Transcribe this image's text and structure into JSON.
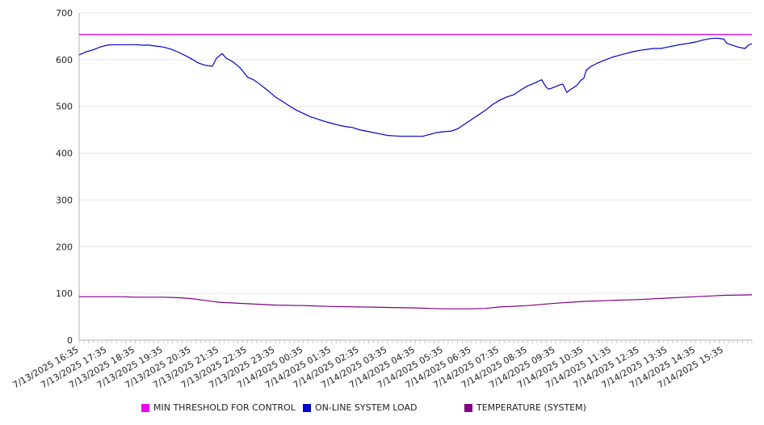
{
  "chart_data": {
    "type": "line",
    "ylim": [
      0,
      700
    ],
    "yticks": [
      0,
      100,
      200,
      300,
      400,
      500,
      600,
      700
    ],
    "xtick_labels": [
      "7/13/2025 16:35",
      "7/13/2025 17:35",
      "7/13/2025 18:35",
      "7/13/2025 19:35",
      "7/13/2025 20:35",
      "7/13/2025 21:35",
      "7/13/2025 22:35",
      "7/13/2025 23:35",
      "7/14/2025 00:35",
      "7/14/2025 01:35",
      "7/14/2025 02:35",
      "7/14/2025 03:35",
      "7/14/2025 04:35",
      "7/14/2025 05:35",
      "7/14/2025 06:35",
      "7/14/2025 07:35",
      "7/14/2025 08:35",
      "7/14/2025 09:35",
      "7/14/2025 10:35",
      "7/14/2025 11:35",
      "7/14/2025 12:35",
      "7/14/2025 13:35",
      "7/14/2025 14:35",
      "7/14/2025 15:35"
    ],
    "x_span_hours": 24,
    "grid": "horizontal",
    "legend_position": "bottom",
    "series": [
      {
        "name": "MIN THRESHOLD FOR CONTROL",
        "color": "#ee00ee",
        "points": [
          [
            0,
            654
          ],
          [
            24,
            654
          ]
        ]
      },
      {
        "name": "ON-LINE SYSTEM LOAD",
        "color": "#0000cc",
        "points": [
          [
            0,
            610
          ],
          [
            0.25,
            617
          ],
          [
            0.5,
            621
          ],
          [
            0.75,
            627
          ],
          [
            1.0,
            631
          ],
          [
            1.25,
            632
          ],
          [
            1.5,
            632
          ],
          [
            1.75,
            632
          ],
          [
            2.0,
            632
          ],
          [
            2.25,
            631
          ],
          [
            2.5,
            631
          ],
          [
            2.75,
            629
          ],
          [
            3.0,
            627
          ],
          [
            3.25,
            623
          ],
          [
            3.5,
            617
          ],
          [
            3.75,
            610
          ],
          [
            4.0,
            602
          ],
          [
            4.25,
            593
          ],
          [
            4.5,
            588
          ],
          [
            4.75,
            586
          ],
          [
            4.9,
            603
          ],
          [
            5.1,
            613
          ],
          [
            5.25,
            603
          ],
          [
            5.5,
            595
          ],
          [
            5.75,
            582
          ],
          [
            6.0,
            563
          ],
          [
            6.25,
            556
          ],
          [
            6.5,
            545
          ],
          [
            6.75,
            533
          ],
          [
            7.0,
            520
          ],
          [
            7.25,
            511
          ],
          [
            7.5,
            501
          ],
          [
            7.75,
            492
          ],
          [
            8.0,
            485
          ],
          [
            8.25,
            478
          ],
          [
            8.5,
            473
          ],
          [
            8.75,
            468
          ],
          [
            9.0,
            464
          ],
          [
            9.25,
            460
          ],
          [
            9.5,
            457
          ],
          [
            9.75,
            455
          ],
          [
            10.0,
            450
          ],
          [
            10.25,
            447
          ],
          [
            10.5,
            444
          ],
          [
            10.75,
            441
          ],
          [
            11.0,
            438
          ],
          [
            11.25,
            437
          ],
          [
            11.5,
            436
          ],
          [
            11.75,
            436
          ],
          [
            12.0,
            436
          ],
          [
            12.25,
            436
          ],
          [
            12.5,
            440
          ],
          [
            12.75,
            444
          ],
          [
            13.0,
            446
          ],
          [
            13.25,
            447
          ],
          [
            13.5,
            452
          ],
          [
            13.75,
            462
          ],
          [
            14.0,
            472
          ],
          [
            14.25,
            482
          ],
          [
            14.5,
            492
          ],
          [
            14.75,
            504
          ],
          [
            15.0,
            513
          ],
          [
            15.25,
            520
          ],
          [
            15.5,
            525
          ],
          [
            15.75,
            535
          ],
          [
            16.0,
            544
          ],
          [
            16.25,
            550
          ],
          [
            16.5,
            557
          ],
          [
            16.65,
            542
          ],
          [
            16.75,
            537
          ],
          [
            16.9,
            540
          ],
          [
            17.1,
            545
          ],
          [
            17.25,
            548
          ],
          [
            17.4,
            530
          ],
          [
            17.5,
            535
          ],
          [
            17.75,
            545
          ],
          [
            17.9,
            556
          ],
          [
            18.0,
            560
          ],
          [
            18.1,
            578
          ],
          [
            18.25,
            585
          ],
          [
            18.5,
            593
          ],
          [
            18.75,
            599
          ],
          [
            19.0,
            605
          ],
          [
            19.25,
            609
          ],
          [
            19.5,
            613
          ],
          [
            19.75,
            617
          ],
          [
            20.0,
            620
          ],
          [
            20.25,
            622
          ],
          [
            20.5,
            624
          ],
          [
            20.75,
            624
          ],
          [
            21.0,
            627
          ],
          [
            21.25,
            630
          ],
          [
            21.5,
            633
          ],
          [
            21.75,
            635
          ],
          [
            22.0,
            638
          ],
          [
            22.25,
            642
          ],
          [
            22.5,
            645
          ],
          [
            22.75,
            646
          ],
          [
            23.0,
            644
          ],
          [
            23.1,
            635
          ],
          [
            23.25,
            632
          ],
          [
            23.5,
            627
          ],
          [
            23.75,
            624
          ],
          [
            23.9,
            632
          ],
          [
            24.0,
            634
          ]
        ]
      },
      {
        "name": "TEMPERATURE (SYSTEM)",
        "color": "#800080",
        "points": [
          [
            0,
            93
          ],
          [
            1,
            93
          ],
          [
            1.5,
            93
          ],
          [
            2,
            92
          ],
          [
            3,
            92
          ],
          [
            3.5,
            91
          ],
          [
            4,
            89
          ],
          [
            4.5,
            85
          ],
          [
            5,
            81
          ],
          [
            6,
            78
          ],
          [
            7,
            75
          ],
          [
            8,
            74
          ],
          [
            9,
            72
          ],
          [
            10,
            71
          ],
          [
            11,
            70
          ],
          [
            12,
            69
          ],
          [
            12.5,
            68
          ],
          [
            13,
            67
          ],
          [
            14,
            67
          ],
          [
            14.5,
            68
          ],
          [
            15,
            71
          ],
          [
            16,
            74
          ],
          [
            17,
            79
          ],
          [
            18,
            83
          ],
          [
            19,
            85
          ],
          [
            20,
            87
          ],
          [
            21,
            90
          ],
          [
            22,
            93
          ],
          [
            23,
            96
          ],
          [
            24,
            97
          ]
        ]
      }
    ]
  }
}
